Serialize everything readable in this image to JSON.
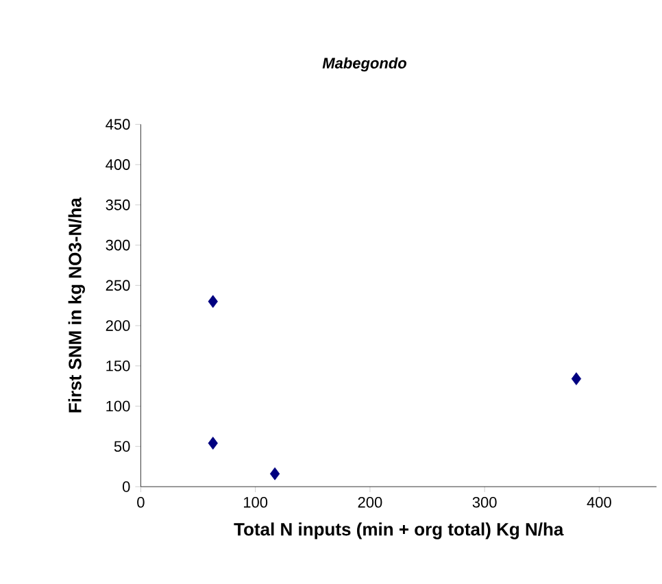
{
  "chart_data": {
    "type": "scatter",
    "title": "Mabegondo",
    "xlabel": "Total N inputs (min + org total) Kg N/ha",
    "ylabel": "First SNM in kg NO3-N/ha",
    "series": [
      {
        "color": "#000080",
        "x": [
          63,
          63,
          117,
          380
        ],
        "values": [
          230,
          54,
          16,
          134
        ]
      }
    ],
    "xlim": [
      0,
      450
    ],
    "ylim": [
      0,
      450
    ],
    "xticks": [
      0,
      100,
      200,
      300,
      400
    ],
    "yticks": [
      0,
      50,
      100,
      150,
      200,
      250,
      300,
      350,
      400,
      450
    ],
    "marker": "diamond",
    "grid": false
  }
}
